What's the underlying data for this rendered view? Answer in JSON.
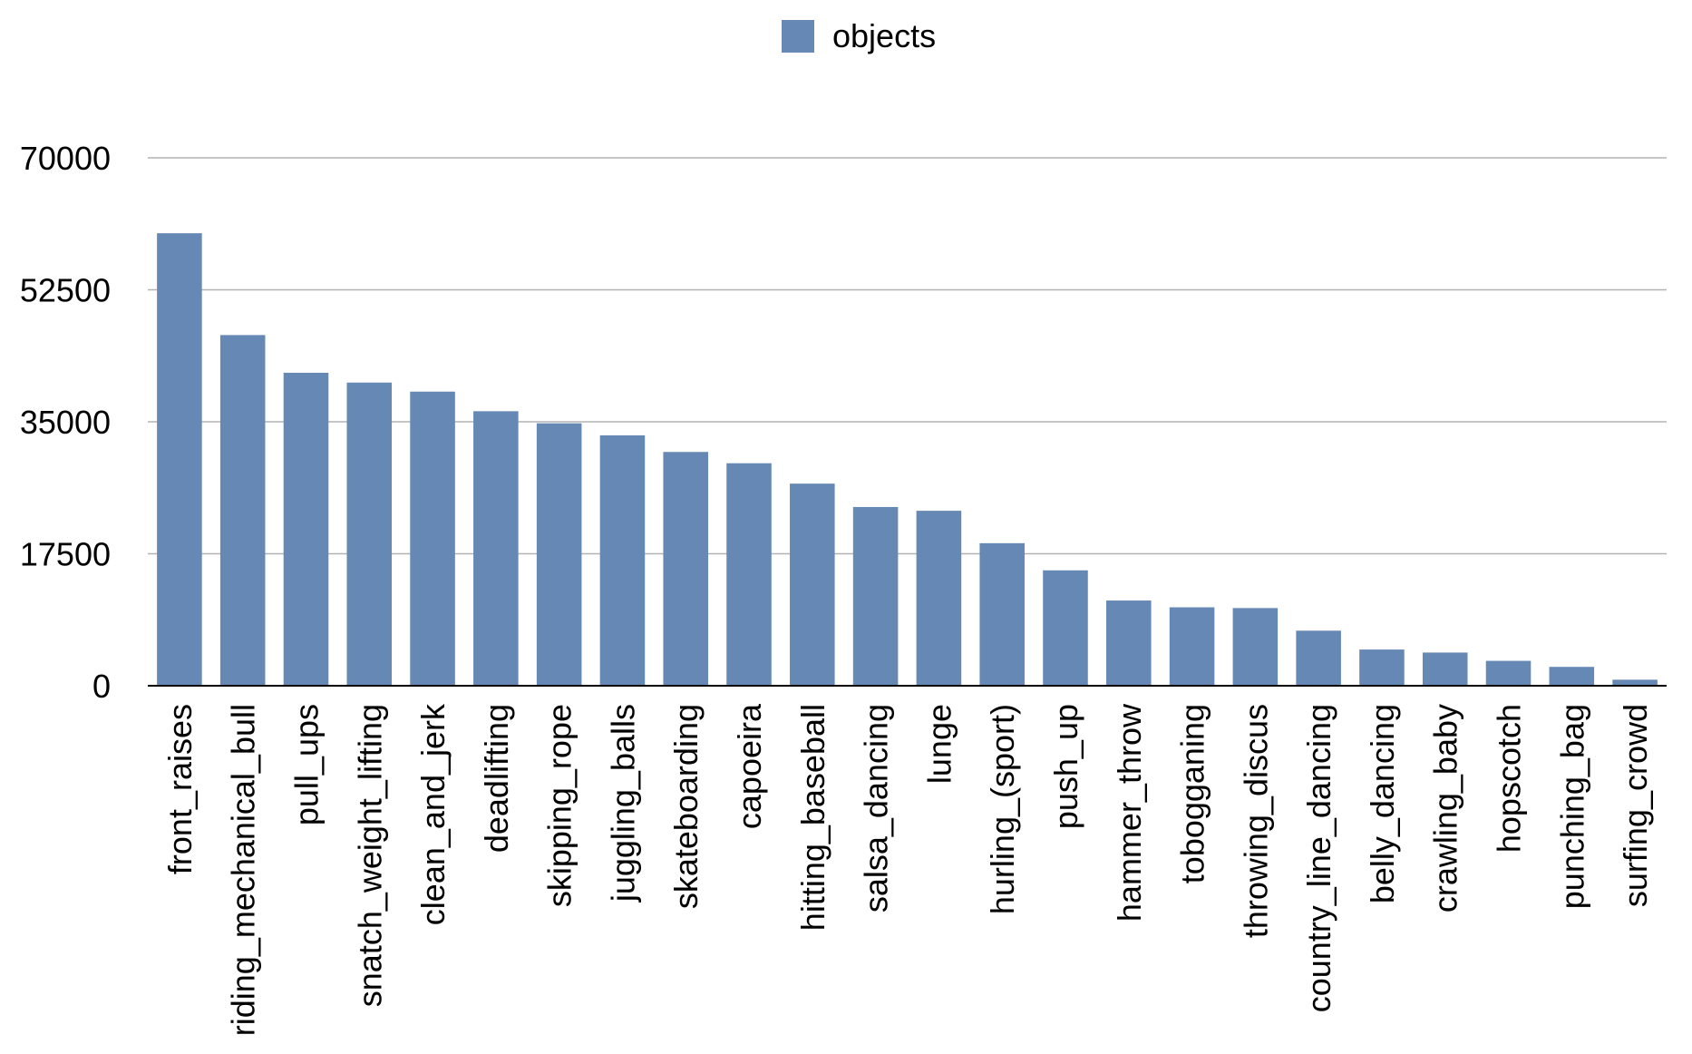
{
  "chart_data": {
    "type": "bar",
    "categories": [
      "front_raises",
      "riding_mechanical_bull",
      "pull_ups",
      "snatch_weight_lifting",
      "clean_and_jerk",
      "deadlifting",
      "skipping_rope",
      "juggling_balls",
      "skateboarding",
      "capoeira",
      "hitting_baseball",
      "salsa_dancing",
      "lunge",
      "hurling_(sport)",
      "push_up",
      "hammer_throw",
      "tobogganing",
      "throwing_discus",
      "country_line_dancing",
      "belly_dancing",
      "crawling_baby",
      "hopscotch",
      "punching_bag",
      "surfing_crowd"
    ],
    "series": [
      {
        "name": "objects",
        "color": "#6688b4",
        "values": [
          60000,
          46500,
          41500,
          40200,
          39000,
          36400,
          34800,
          33200,
          31000,
          29500,
          26800,
          23700,
          23200,
          18900,
          15300,
          11300,
          10400,
          10300,
          7300,
          4800,
          4400,
          3300,
          2500,
          800
        ]
      }
    ],
    "title": "",
    "xlabel": "",
    "ylabel": "",
    "ylim": [
      0,
      70000
    ],
    "yticks": [
      "0",
      "17500",
      "35000",
      "52500",
      "70000"
    ],
    "grid": true,
    "legend": "top-center"
  }
}
